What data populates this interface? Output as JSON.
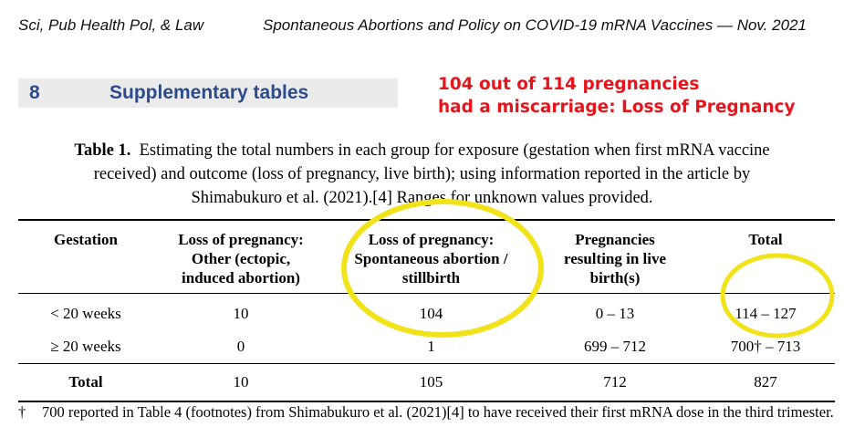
{
  "header": {
    "journal": "Sci, Pub Health Pol, & Law",
    "running_title": "Spontaneous Abortions and Policy on COVID-19 mRNA Vaccines — Nov. 2021"
  },
  "section": {
    "number": "8",
    "title": "Supplementary tables"
  },
  "annotation": {
    "line1": "104 out of 114 pregnancies",
    "line2": "had a miscarriage: Loss of Pregnancy",
    "color": "#e8141b"
  },
  "caption": {
    "label": "Table 1.",
    "line1": "Estimating the total numbers in each group for exposure (gestation when first mRNA vaccine",
    "line2": "received) and outcome (loss of pregnancy, live birth); using information reported in the article by",
    "line3": "Shimabukuro et al. (2021).[4] Ranges for unknown values provided."
  },
  "table": {
    "headers": [
      [
        "Gestation"
      ],
      [
        "Loss of pregnancy:",
        "Other (ectopic,",
        "induced abortion)"
      ],
      [
        "Loss of pregnancy:",
        "Spontaneous abortion /",
        "stillbirth"
      ],
      [
        "Pregnancies",
        "resulting in live",
        "birth(s)"
      ],
      [
        "Total"
      ]
    ],
    "rows": [
      [
        "< 20 weeks",
        "10",
        "104",
        "0 – 13",
        "114 – 127"
      ],
      [
        "≥ 20 weeks",
        "0",
        "1",
        "699 – 712",
        "700† – 713"
      ]
    ],
    "total_row": [
      "Total",
      "10",
      "105",
      "712",
      "827"
    ]
  },
  "footnote": {
    "symbol": "†",
    "text": "700 reported in Table 4 (footnotes) from Shimabukuro et al. (2021)[4] to have received their first mRNA dose in the third trimester."
  },
  "highlight_color": "#f2e21a"
}
